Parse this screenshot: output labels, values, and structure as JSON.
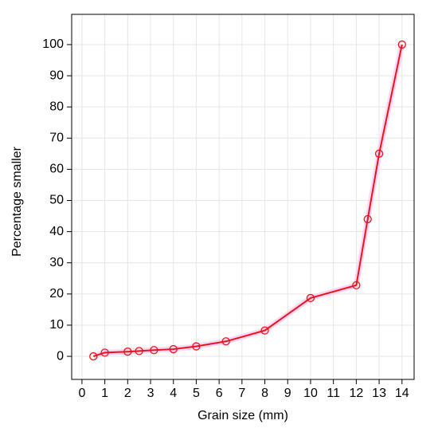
{
  "chart_data": {
    "type": "line",
    "x_label": "Grain size (mm)",
    "y_label": "Percentage smaller",
    "x": [
      0.5,
      1,
      2,
      2.5,
      3.15,
      4,
      5,
      6.3,
      8,
      10,
      12,
      12.5,
      13,
      14
    ],
    "series": [
      {
        "color": "#e8141c",
        "values": [
          0,
          1.2,
          1.5,
          1.7,
          2,
          2.3,
          3.2,
          4.8,
          8.3,
          18.7,
          22.8,
          44,
          65,
          100
        ]
      }
    ],
    "xlim": [
      -0.45,
      14.53
    ],
    "xticks": [
      0,
      1,
      2,
      3,
      4,
      5,
      6,
      7,
      8,
      9,
      10,
      11,
      12,
      13,
      14
    ],
    "ylim": [
      -7.4,
      109.7
    ],
    "yticks": [
      0,
      10,
      20,
      30,
      40,
      50,
      60,
      70,
      80,
      90,
      100
    ],
    "grid": true
  }
}
